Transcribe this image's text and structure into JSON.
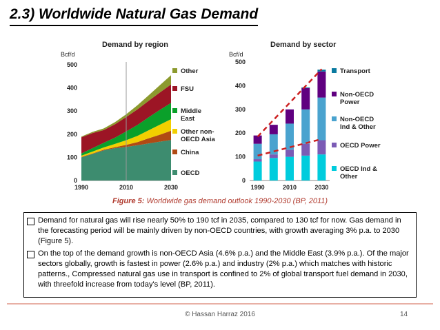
{
  "title": "2.3) Worldwide Natural Gas Demand",
  "caption": {
    "label": "Figure 5:",
    "text": "Worldwide gas demand outlook 1990-2030 (BP, 2011)"
  },
  "bullets": [
    "Demand for natural gas will rise nearly 50% to 190 tcf in 2035, compared to 130 tcf for now. Gas demand in the forecasting period will be mainly driven by non-OECD countries, with growth averaging 3% p.a. to 2030 (Figure 5).",
    "On the top of the demand growth is non-OECD Asia (4.6% p.a.) and the Middle East (3.9% p.a.). Of the major sectors globally, growth is fastest in power (2.6% p.a.) and industry (2% p.a.) which matches with historic patterns., Compressed natural gas use in transport is confined to 2% of global transport fuel demand in 2030, with threefold increase from today's level (BP, 2011)."
  ],
  "footer": {
    "copyright": "© Hassan Harraz 2016",
    "page": "14"
  },
  "chart_data": [
    {
      "type": "area",
      "title": "Demand by region",
      "ylabel": "Bcf/d",
      "x": [
        1990,
        1995,
        2000,
        2005,
        2010,
        2015,
        2020,
        2025,
        2030
      ],
      "xticks": [
        "1990",
        "2010",
        "2030"
      ],
      "yticks": [
        "0",
        "100",
        "200",
        "300",
        "400",
        "500"
      ],
      "ylim": [
        0,
        500
      ],
      "stacked": true,
      "series": [
        {
          "name": "OECD",
          "color": "#3d8c6f",
          "values": [
            100,
            115,
            130,
            140,
            145,
            152,
            160,
            168,
            175
          ]
        },
        {
          "name": "China",
          "color": "#b04a14",
          "values": [
            2,
            2,
            3,
            4,
            9,
            14,
            22,
            30,
            40
          ]
        },
        {
          "name": "Other non-OECD Asia",
          "color": "#f2cf00",
          "values": [
            5,
            8,
            10,
            14,
            20,
            27,
            35,
            43,
            50
          ]
        },
        {
          "name": "Middle East",
          "color": "#0aa02a",
          "values": [
            10,
            15,
            20,
            27,
            38,
            47,
            56,
            64,
            70
          ]
        },
        {
          "name": "FSU",
          "color": "#9c1525",
          "values": [
            70,
            65,
            55,
            58,
            62,
            67,
            71,
            75,
            80
          ]
        },
        {
          "name": "Other",
          "color": "#8c9a2e",
          "values": [
            3,
            5,
            7,
            9,
            12,
            18,
            24,
            32,
            40
          ]
        }
      ],
      "legend": [
        "Other",
        "FSU",
        "Middle East",
        "Other non-OECD Asia",
        "China",
        "OECD"
      ],
      "legend_position": "right"
    },
    {
      "type": "bar",
      "title": "Demand by sector",
      "ylabel": "Bcf/d",
      "categories": [
        "1990",
        "2000",
        "2010",
        "2020",
        "2030"
      ],
      "xticks": [
        "1990",
        "2010",
        "2030"
      ],
      "yticks": [
        "0",
        "100",
        "200",
        "300",
        "400",
        "500"
      ],
      "ylim": [
        0,
        500
      ],
      "stacked": true,
      "series": [
        {
          "name": "OECD Ind & Other",
          "color": "#00ccdd",
          "values": [
            80,
            95,
            100,
            105,
            110
          ]
        },
        {
          "name": "OECD Power",
          "color": "#7b5bb5",
          "values": [
            10,
            15,
            30,
            50,
            60
          ]
        },
        {
          "name": "Non-OECD Ind & Other",
          "color": "#4aa3cf",
          "values": [
            65,
            85,
            110,
            145,
            180
          ]
        },
        {
          "name": "Non-OECD Power",
          "color": "#600080",
          "values": [
            35,
            40,
            60,
            90,
            110
          ]
        },
        {
          "name": "Transport",
          "color": "#0a7aa0",
          "values": [
            0,
            0,
            0,
            3,
            8
          ]
        }
      ],
      "trend_lines": [
        {
          "name": "total trend",
          "color": "#cc2020",
          "x": [
            "1990",
            "2030"
          ],
          "y": [
            185,
            470
          ]
        },
        {
          "name": "power trend",
          "color": "#cc2020",
          "x": [
            "1990",
            "2030"
          ],
          "y": [
            105,
            175
          ]
        }
      ],
      "legend": [
        "Transport",
        "Non-OECD Power",
        "Non-OECD Ind & Other",
        "OECD Power",
        "OECD Ind & Other"
      ],
      "legend_position": "right"
    }
  ]
}
